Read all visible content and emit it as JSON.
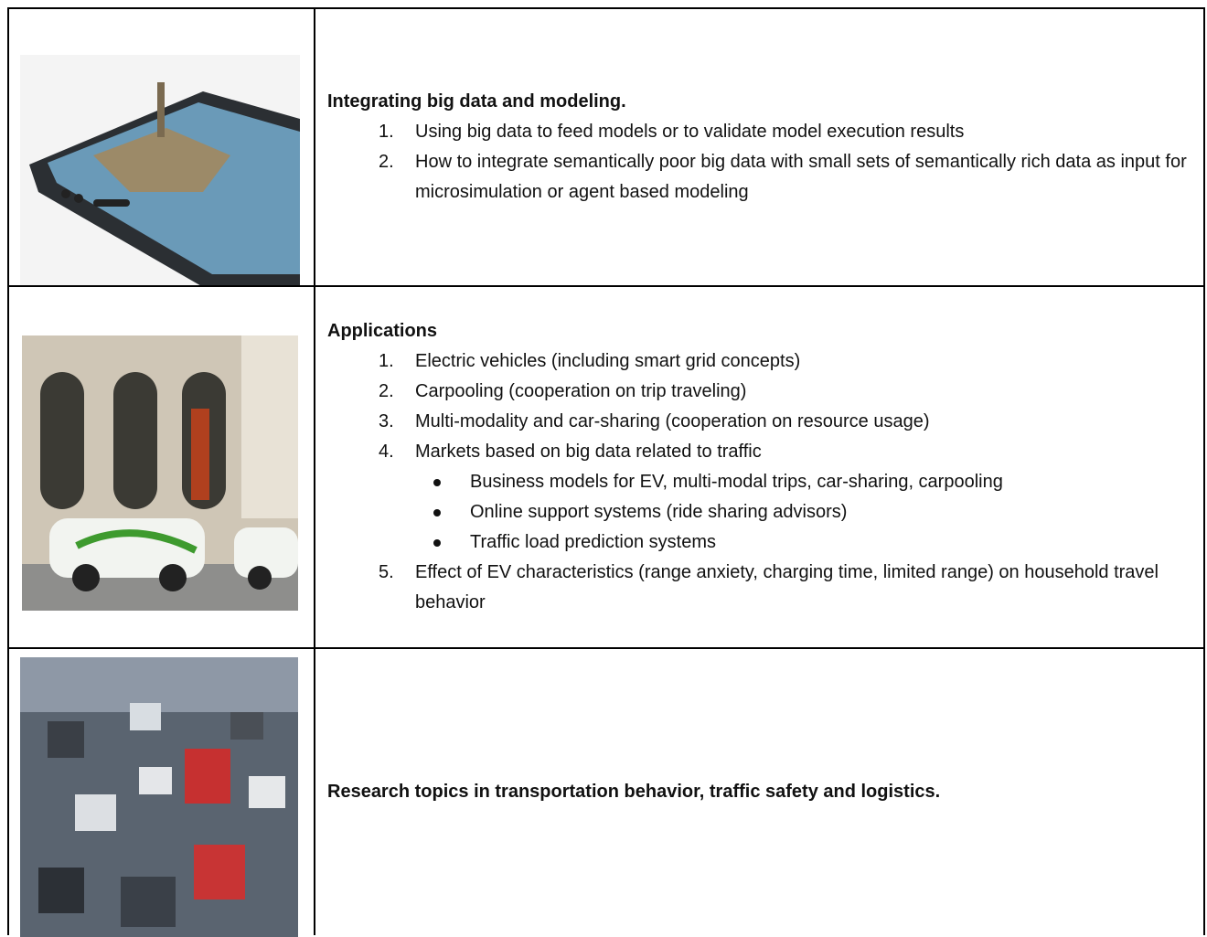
{
  "table": {
    "rows": [
      {
        "title": "Integrating big data and modeling.",
        "items": [
          {
            "number": "1.",
            "text": "Using big data to feed models or to validate model execution results"
          },
          {
            "number": "2.",
            "text": "How to integrate semantically poor big data with small sets of semantically rich data as input for microsimulation or agent based modeling"
          }
        ]
      },
      {
        "title": "Applications",
        "items": [
          {
            "number": "1.",
            "text": "Electric vehicles (including smart grid concepts)"
          },
          {
            "number": "2.",
            "text": "Carpooling (cooperation on trip traveling)"
          },
          {
            "number": "3.",
            "text": "Multi-modality and car-sharing (cooperation on resource usage)"
          },
          {
            "number": "4.",
            "text": "Markets based on big data related to traffic",
            "subitems": [
              "Business models for EV, multi-modal trips, car-sharing, carpooling",
              "Online support systems (ride sharing advisors)",
              "Traffic load prediction systems"
            ]
          },
          {
            "number": "5.",
            "text": "Effect of EV characteristics (range anxiety, charging time, limited range) on household travel behavior"
          }
        ]
      },
      {
        "title": "Research topics in transportation behavior, traffic safety and logistics."
      }
    ]
  }
}
